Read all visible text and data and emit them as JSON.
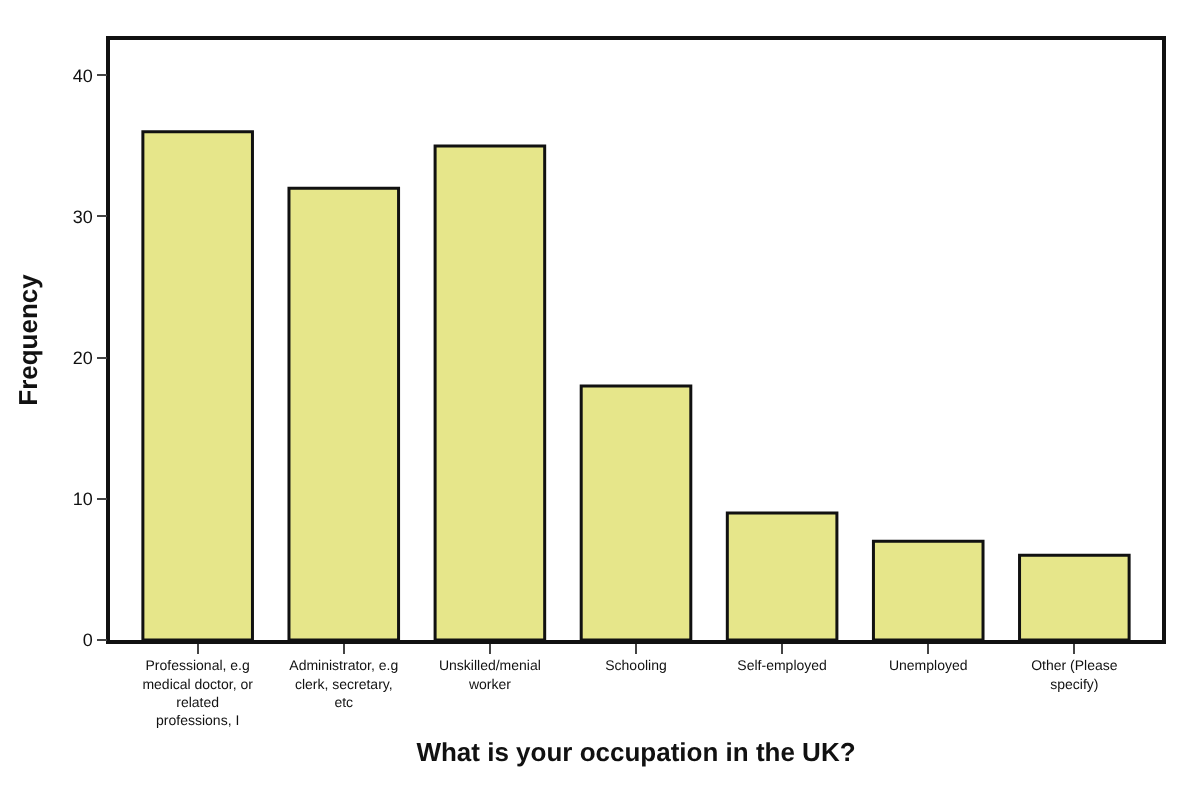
{
  "chart_data": {
    "type": "bar",
    "xlabel": "What is your occupation in the UK?",
    "ylabel": "Frequency",
    "categories": [
      "Professional, e.g medical doctor, or related professions, I",
      "Administrator, e.g clerk, secretary, etc",
      "Unskilled/menial worker",
      "Schooling",
      "Self-employed",
      "Unemployed",
      "Other (Please specify)"
    ],
    "values": [
      36,
      32,
      35,
      18,
      9,
      7,
      6
    ],
    "color": "#e6e68a",
    "ylim": [
      0,
      42.5
    ],
    "yticks": [
      0,
      10,
      20,
      30,
      40
    ],
    "grid": false
  }
}
